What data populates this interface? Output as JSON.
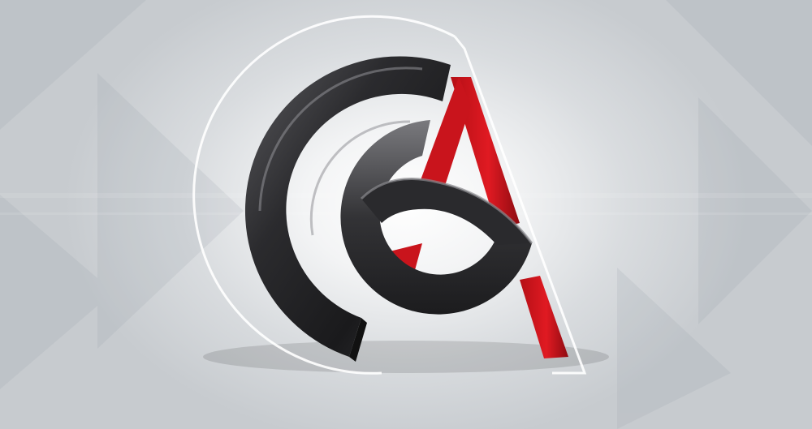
{
  "scene": {
    "subject": "logo",
    "icon": "ga-monogram-logo-icon",
    "colors": {
      "background_light": "#ffffff",
      "background_dark": "#c7cbcf",
      "ring_dark": "#2a2a2c",
      "ring_highlight": "#6b6b6f",
      "letter_red": "#d0121b",
      "letter_red_dark": "#8e0b11"
    }
  }
}
